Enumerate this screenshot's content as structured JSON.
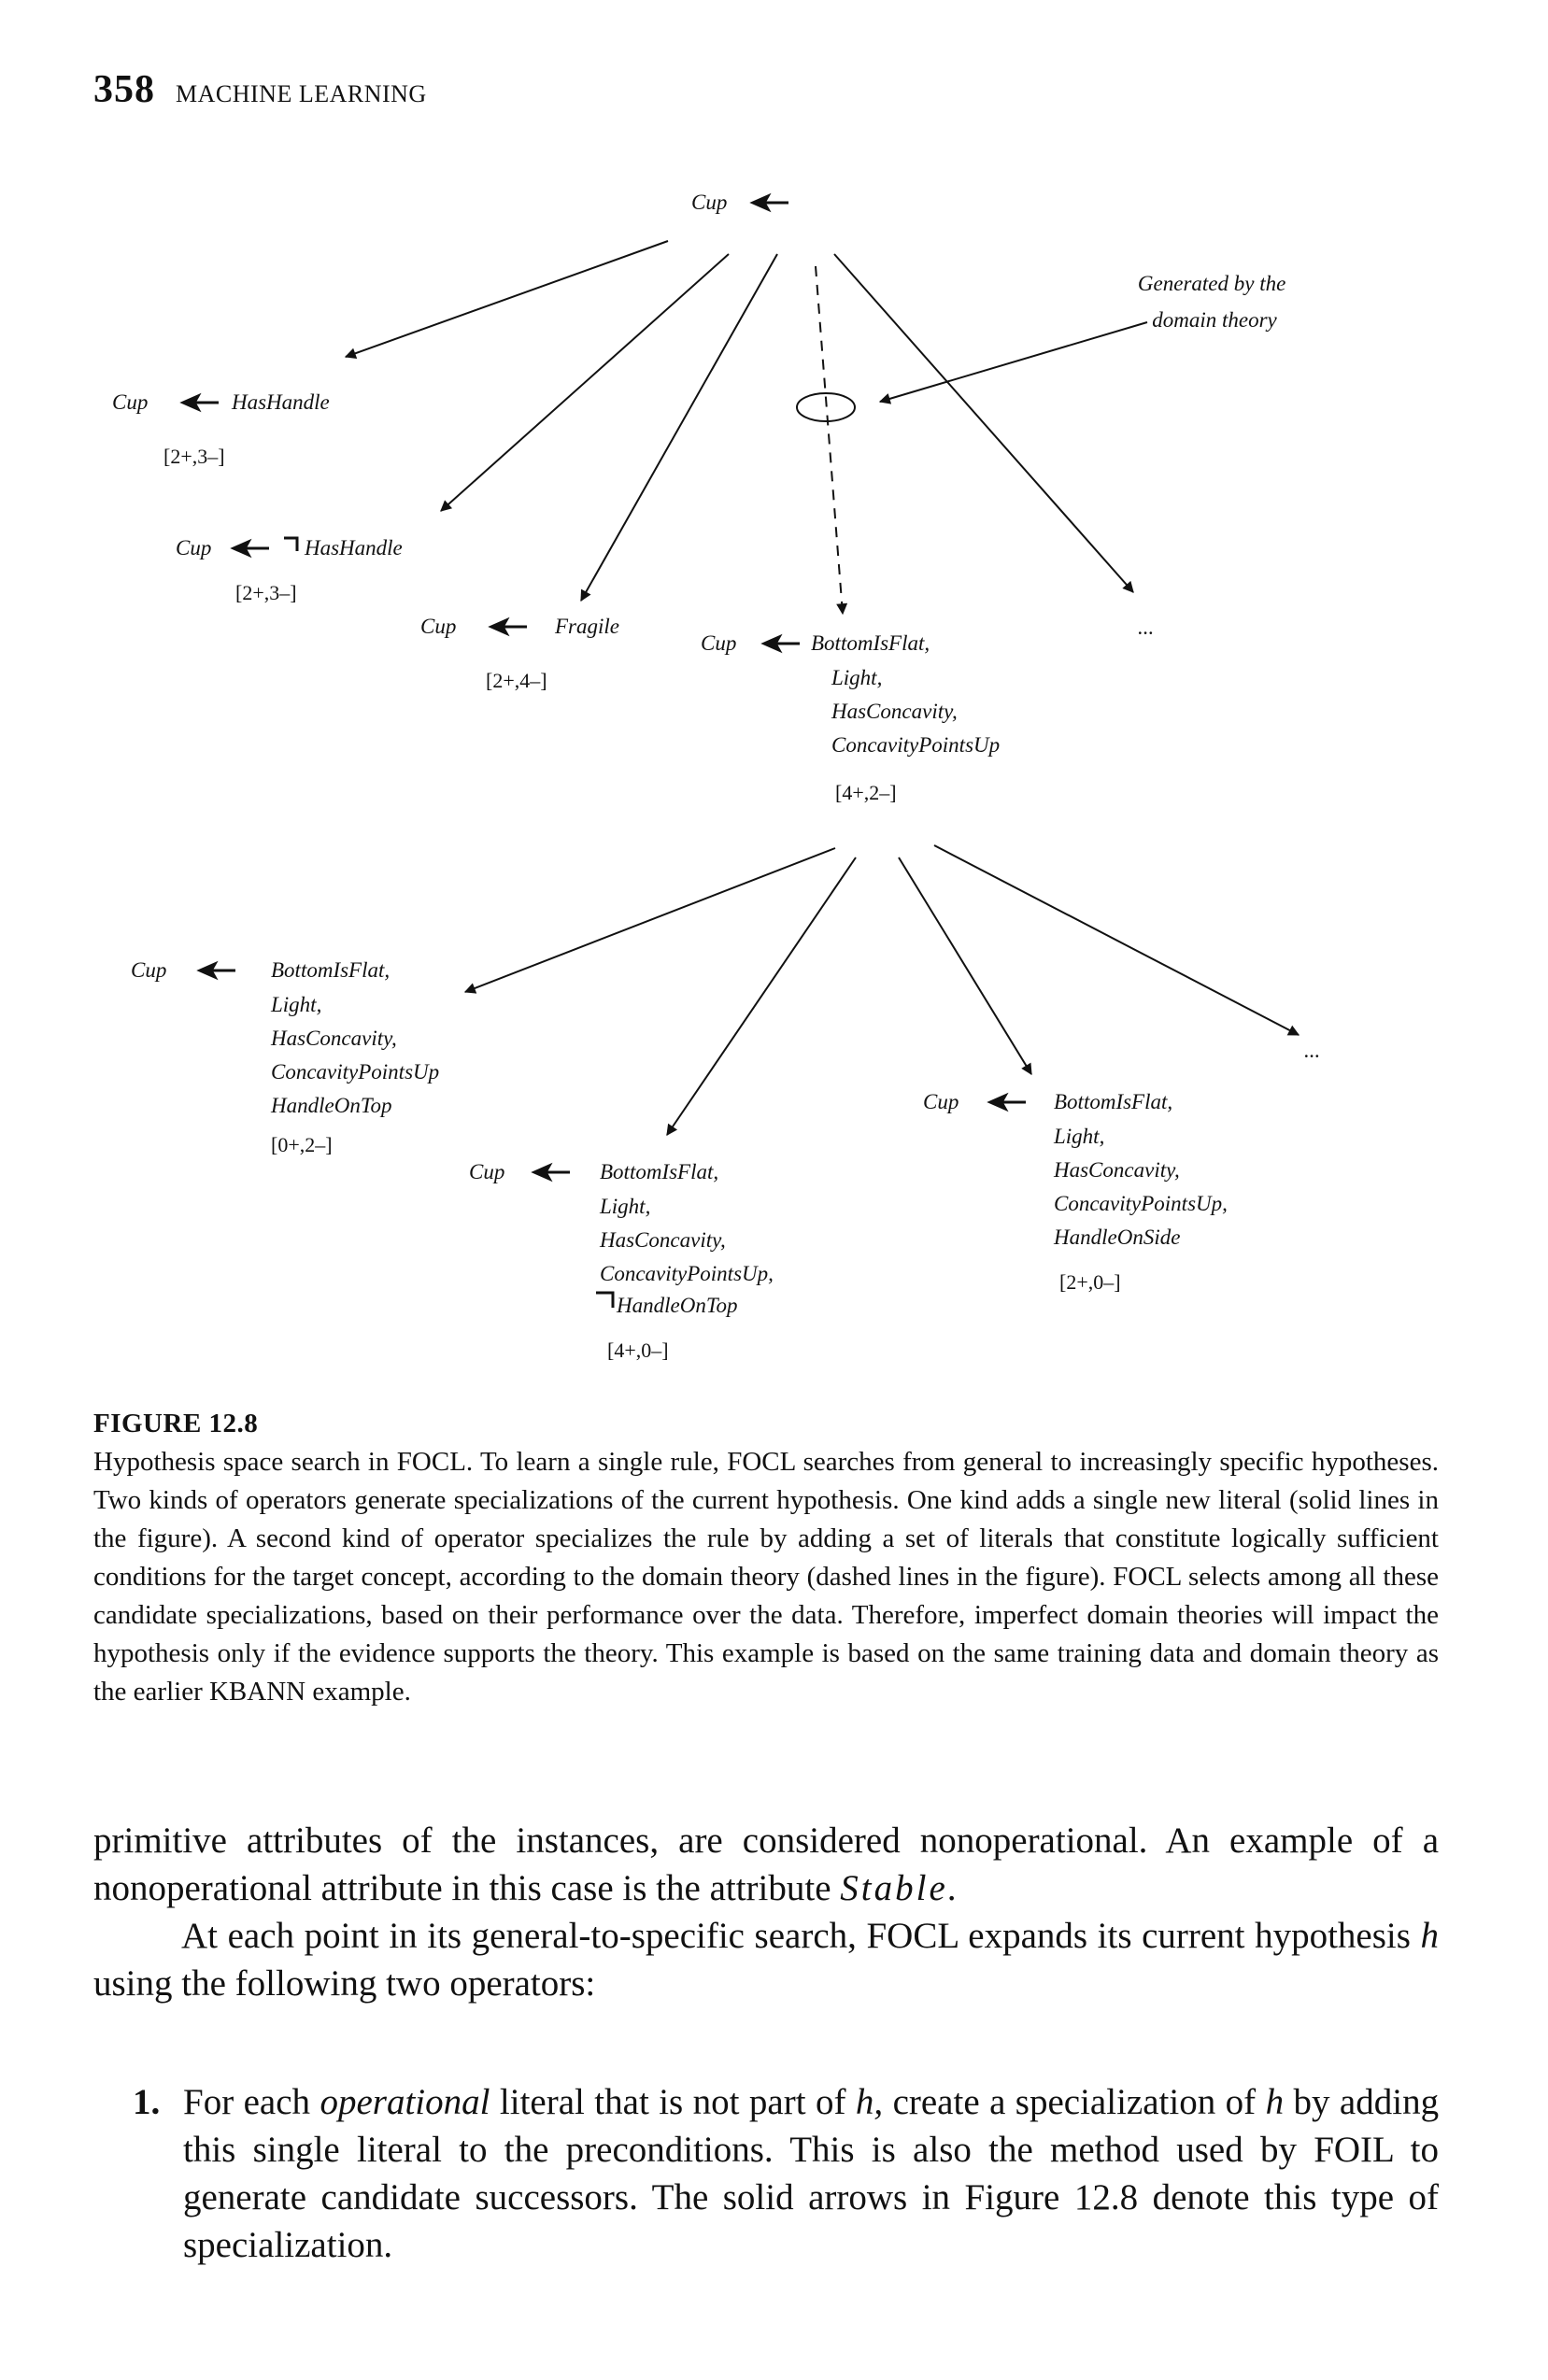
{
  "header": {
    "page_number": "358",
    "running_title": "MACHINE LEARNING"
  },
  "figure": {
    "root": "Cup",
    "annotation": [
      "Generated by the",
      "domain theory"
    ],
    "ellipsis": "...",
    "nodes": [
      {
        "head": "Cup",
        "body": [
          "HasHandle"
        ],
        "count": "[2+,3–]"
      },
      {
        "head": "Cup",
        "body": [
          "HasHandle"
        ],
        "negated": true,
        "count": "[2+,3–]"
      },
      {
        "head": "Cup",
        "body": [
          "Fragile"
        ],
        "count": "[2+,4–]"
      },
      {
        "head": "Cup",
        "body": [
          "BottomIsFlat,",
          "Light,",
          "HasConcavity,",
          "ConcavityPointsUp"
        ],
        "count": "[4+,2–]"
      },
      {
        "head": "Cup",
        "body": [
          "BottomIsFlat,",
          "Light,",
          "HasConcavity,",
          "ConcavityPointsUp",
          "HandleOnTop"
        ],
        "count": "[0+,2–]"
      },
      {
        "head": "Cup",
        "body": [
          "BottomIsFlat,",
          "Light,",
          "HasConcavity,",
          "ConcavityPointsUp,",
          "HandleOnTop"
        ],
        "negated_last": true,
        "count": "[4+,0–]"
      },
      {
        "head": "Cup",
        "body": [
          "BottomIsFlat,",
          "Light,",
          "HasConcavity,",
          "ConcavityPointsUp,",
          "HandleOnSide"
        ],
        "count": "[2+,0–]"
      }
    ]
  },
  "caption": {
    "label": "FIGURE 12.8",
    "text": "Hypothesis space search in FOCL. To learn a single rule, FOCL searches from general to increasingly specific hypotheses. Two kinds of operators generate specializations of the current hypothesis. One kind adds a single new literal (solid lines in the figure). A second kind of operator specializes the rule by adding a set of literals that constitute logically sufficient conditions for the target concept, according to the domain theory (dashed lines in the figure). FOCL selects among all these candidate specializations, based on their performance over the data. Therefore, imperfect domain theories will impact the hypothesis only if the evidence supports the theory. This example is based on the same training data and domain theory as the earlier KBANN example."
  },
  "body": {
    "p1_text": "primitive attributes of the instances, are considered nonoperational. An example of a nonoperational attribute in this case is the attribute",
    "p1_attr": "Stable.",
    "p2_a": "At each point in its general-to-specific search, FOCL expands its current hypothesis",
    "p2_h": "h",
    "p2_b": "using the following two operators:",
    "item1_num": "1.",
    "item1_a": "For each",
    "item1_op": "operational",
    "item1_b": "literal that is not part of",
    "item1_h1": "h,",
    "item1_c": "create a specialization of",
    "item1_h2": "h",
    "item1_d": "by adding this single literal to the preconditions. This is also the method used by FOIL to generate candidate successors. The solid arrows in Figure 12.8 denote this type of specialization."
  }
}
